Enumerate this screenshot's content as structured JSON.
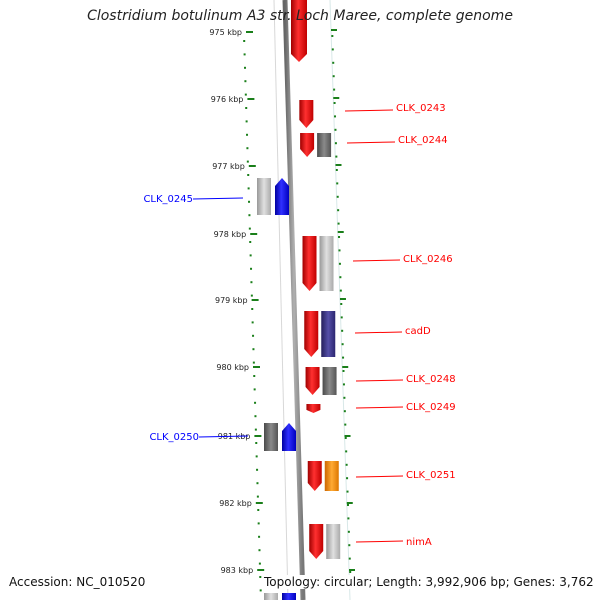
{
  "title": "Clostridium botulinum A3 str. Loch Maree, complete genome",
  "footer": {
    "accession": "Accession: NC_010520",
    "stats": "Topology: circular; Length: 3,992,906 bp; Genes: 3,762"
  },
  "ticks": [
    "975 kbp",
    "976 kbp",
    "977 kbp",
    "978 kbp",
    "979 kbp",
    "980 kbp",
    "981 kbp",
    "982 kbp",
    "983 kbp"
  ],
  "colors": {
    "forward_gene": "#ff0000",
    "reverse_gene": "#0000ff",
    "backbone": "#808080",
    "tick_dots": "#1a7f1a",
    "cog_grey": "#6a6a6a",
    "cog_lightgrey": "#b8b8b8",
    "cog_purple": "#3a3580",
    "cog_orange": "#ff8800"
  },
  "genes": [
    {
      "label": "CLK_0243",
      "strand": "forward"
    },
    {
      "label": "CLK_0244",
      "strand": "forward"
    },
    {
      "label": "CLK_0245",
      "strand": "reverse"
    },
    {
      "label": "CLK_0246",
      "strand": "forward"
    },
    {
      "label": "cadD",
      "strand": "forward"
    },
    {
      "label": "CLK_0248",
      "strand": "forward"
    },
    {
      "label": "CLK_0249",
      "strand": "forward"
    },
    {
      "label": "CLK_0250",
      "strand": "reverse"
    },
    {
      "label": "CLK_0251",
      "strand": "forward"
    },
    {
      "label": "nimA",
      "strand": "forward"
    }
  ]
}
